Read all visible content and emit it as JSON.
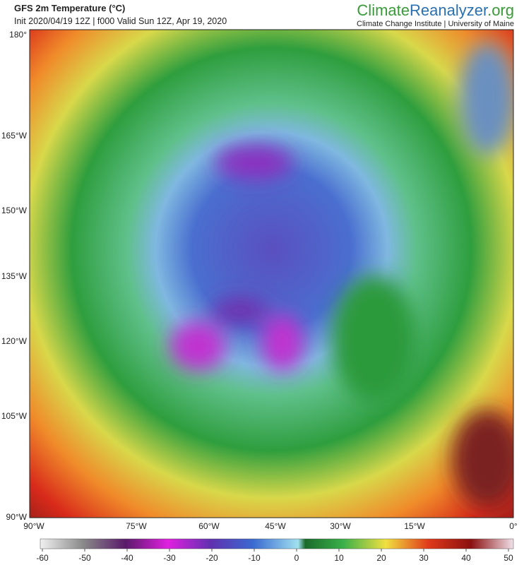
{
  "header": {
    "title": "GFS 2m Temperature (°C)",
    "subtitle": "Init 2020/04/19 12Z | f000 Valid Sun 12Z, Apr 19, 2020",
    "brand": [
      "Climate",
      "Reanalyzer",
      ".org"
    ],
    "institute": "Climate Change Institute | University of Maine"
  },
  "map": {
    "left_labels": [
      "180°",
      "165°W",
      "150°W",
      "135°W",
      "120°W",
      "105°W",
      "90°W"
    ],
    "bottom_labels": [
      "90°W",
      "75°W",
      "60°W",
      "45°W",
      "30°W",
      "15°W",
      "0°"
    ]
  },
  "colorbar": {
    "ticks": [
      -60,
      -50,
      -40,
      -30,
      -20,
      -10,
      0,
      10,
      20,
      30,
      40,
      50
    ]
  }
}
